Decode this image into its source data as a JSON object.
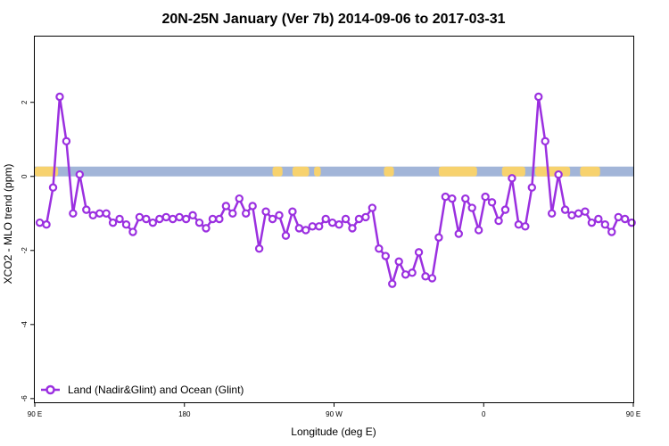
{
  "chart_data": {
    "type": "line",
    "title": "20N-25N January (Ver 7b)   2014-09-06 to 2017-03-31",
    "xlabel": "Longitude (deg E)",
    "ylabel": "XCO2 - MLO trend (ppm)",
    "xlim": [
      90,
      450
    ],
    "ylim": [
      -6.1,
      3.8
    ],
    "x_ticks": [
      {
        "value": 90,
        "label": "90 E"
      },
      {
        "value": 180,
        "label": "180"
      },
      {
        "value": 270,
        "label": "90 W"
      },
      {
        "value": 360,
        "label": "0"
      },
      {
        "value": 450,
        "label": "90 E"
      }
    ],
    "y_ticks": [
      {
        "value": -6,
        "label": "-6"
      },
      {
        "value": -4,
        "label": "-4"
      },
      {
        "value": -2,
        "label": "-2"
      },
      {
        "value": 0,
        "label": "0"
      },
      {
        "value": 2,
        "label": "2"
      }
    ],
    "grid": false,
    "legend_position": "bottom-left",
    "colors": {
      "line": "#9b30e0",
      "ocean": "#a2b5d8",
      "land": "#f7d26e"
    },
    "land_segments": [
      [
        90,
        104
      ],
      [
        233,
        239
      ],
      [
        245,
        255
      ],
      [
        258,
        262
      ],
      [
        300,
        306
      ],
      [
        333,
        356
      ],
      [
        371,
        385
      ],
      [
        391,
        412
      ],
      [
        418,
        430
      ]
    ],
    "series": [
      {
        "name": "Land (Nadir&Glint) and Ocean (Glint)",
        "x": [
          93,
          97,
          101,
          105,
          109,
          113,
          117,
          121,
          125,
          129,
          133,
          137,
          141,
          145,
          149,
          153,
          157,
          161,
          165,
          169,
          173,
          177,
          181,
          185,
          189,
          193,
          197,
          201,
          205,
          209,
          213,
          217,
          221,
          225,
          229,
          233,
          237,
          241,
          245,
          249,
          253,
          257,
          261,
          265,
          269,
          273,
          277,
          281,
          285,
          289,
          293,
          297,
          301,
          305,
          309,
          313,
          317,
          321,
          325,
          329,
          333,
          337,
          341,
          345,
          349,
          353,
          357,
          361,
          365,
          369,
          373,
          377,
          381,
          385,
          389,
          393,
          397,
          401,
          405,
          409,
          413,
          417,
          421,
          425,
          429,
          433,
          437,
          441,
          445,
          449
        ],
        "values": [
          -1.25,
          -1.3,
          -0.3,
          2.15,
          0.95,
          -1.0,
          0.05,
          -0.9,
          -1.05,
          -1.0,
          -1.0,
          -1.25,
          -1.15,
          -1.3,
          -1.5,
          -1.1,
          -1.15,
          -1.25,
          -1.15,
          -1.1,
          -1.15,
          -1.1,
          -1.15,
          -1.05,
          -1.25,
          -1.4,
          -1.15,
          -1.15,
          -0.8,
          -1.0,
          -0.6,
          -1.0,
          -0.8,
          -1.95,
          -0.95,
          -1.15,
          -1.05,
          -1.6,
          -0.95,
          -1.4,
          -1.45,
          -1.35,
          -1.35,
          -1.15,
          -1.25,
          -1.3,
          -1.15,
          -1.4,
          -1.15,
          -1.1,
          -0.85,
          -1.95,
          -2.15,
          -2.9,
          -2.3,
          -2.65,
          -2.6,
          -2.05,
          -2.7,
          -2.75,
          -1.65,
          -0.55,
          -0.6,
          -1.55,
          -0.6,
          -0.85,
          -1.45,
          -0.55,
          -0.7,
          -1.2,
          -0.9,
          -0.05,
          -1.3,
          -1.35,
          -0.3,
          2.15,
          0.95,
          -1.0,
          0.05,
          -0.9,
          -1.05,
          -1.0,
          -0.95,
          -1.25,
          -1.15,
          -1.3,
          -1.5,
          -1.1,
          -1.15,
          -1.25
        ]
      }
    ]
  }
}
